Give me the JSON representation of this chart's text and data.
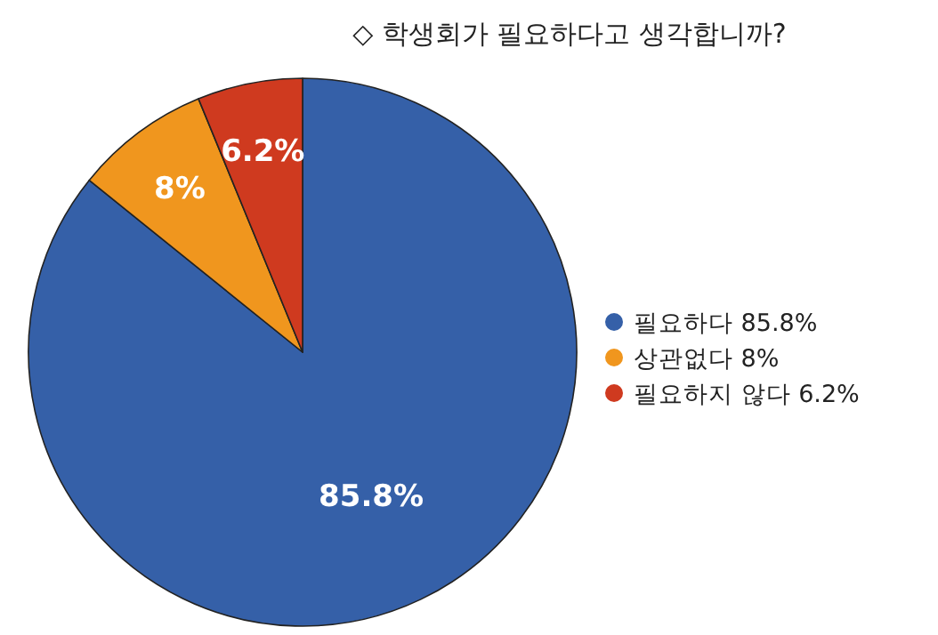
{
  "chart_data": {
    "type": "pie",
    "title": "◇ 학생회가 필요하다고 생각합니까?",
    "categories": [
      "필요하다",
      "상관없다",
      "필요하지 않다"
    ],
    "values": [
      85.8,
      8,
      6.2
    ],
    "value_labels": [
      "85.8%",
      "8%",
      "6.2%"
    ],
    "colors": [
      "#3560a8",
      "#f0961e",
      "#cf3a1f"
    ],
    "legend": "right"
  }
}
